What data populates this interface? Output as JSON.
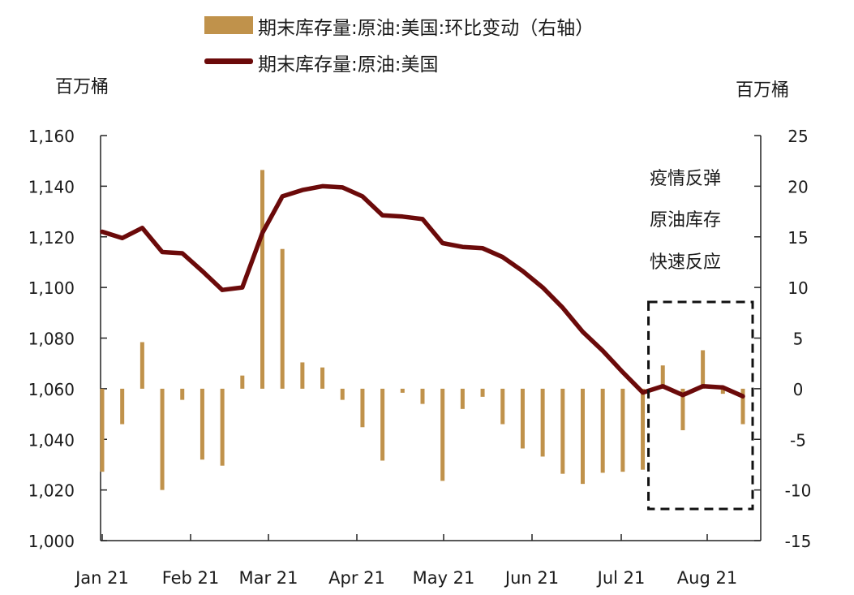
{
  "chart_data": {
    "type": "bar",
    "legend": {
      "bar_label": "期末库存量:原油:美国:环比变动（右轴）",
      "line_label": "期末库存量:原油:美国",
      "placement": "top"
    },
    "left_unit": "百万桶",
    "right_unit": "百万桶",
    "annotation_lines": [
      "疫情反弹",
      "原油库存",
      "快速反应"
    ],
    "x_ticks": [
      "Jan 21",
      "Feb 21",
      "Mar 21",
      "Apr 21",
      "May 21",
      "Jun 21",
      "Jul 21",
      "Aug 21"
    ],
    "y_left": {
      "ticks": [
        "1,000",
        "1,020",
        "1,040",
        "1,060",
        "1,080",
        "1,100",
        "1,120",
        "1,140",
        "1,160"
      ],
      "range": [
        1000,
        1160
      ]
    },
    "y_right": {
      "ticks": [
        "-15",
        "-10",
        "-5",
        "0",
        "5",
        "10",
        "15",
        "20",
        "25"
      ],
      "range": [
        -15,
        25
      ]
    },
    "grid": false,
    "series": [
      {
        "name": "期末库存量:原油:美国",
        "type": "line",
        "axis": "left",
        "color": "#6b0a0a",
        "values": [
          1122.0,
          1119.5,
          1123.5,
          1114.0,
          1113.5,
          1106.5,
          1099.0,
          1100.0,
          1121.5,
          1136.0,
          1138.5,
          1140.0,
          1139.5,
          1136.0,
          1128.5,
          1128.0,
          1127.0,
          1117.5,
          1116.0,
          1115.5,
          1112.0,
          1106.5,
          1100.0,
          1092.0,
          1082.5,
          1075.0,
          1066.5,
          1058.5,
          1061.0,
          1057.5,
          1061.0,
          1060.5,
          1057.0
        ]
      },
      {
        "name": "期末库存量:原油:美国:环比变动（右轴）",
        "type": "bar",
        "axis": "right",
        "color": "#c0924b",
        "values": [
          -8.2,
          -3.5,
          4.6,
          -10.0,
          -1.1,
          -7.0,
          -7.6,
          1.3,
          21.6,
          13.8,
          2.6,
          2.1,
          -1.1,
          -3.8,
          -7.1,
          -0.4,
          -1.5,
          -9.1,
          -2.0,
          -0.8,
          -3.5,
          -5.9,
          -6.7,
          -8.4,
          -9.4,
          -8.3,
          -8.2,
          -8.0,
          2.3,
          -4.1,
          3.8,
          -0.5,
          -3.5
        ]
      }
    ],
    "highlight_box": {
      "from_index": 27,
      "to_index": 32,
      "style": "dashed"
    }
  }
}
